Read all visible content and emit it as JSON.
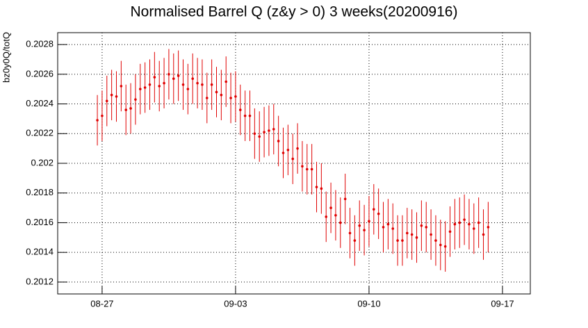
{
  "chart_data": {
    "type": "errorbar",
    "title": "Normalised Barrel Q (z&y > 0) 3 weeks(20200916)",
    "y_label": "bz0y0Q/totQ",
    "color": "#e00000",
    "grid": true,
    "xlim": [
      -2.33,
      22.46
    ],
    "ylim": [
      0.20112,
      0.20288
    ],
    "xticks": [
      {
        "value": 0,
        "label": "08-27"
      },
      {
        "value": 7,
        "label": "09-03"
      },
      {
        "value": 14,
        "label": "09-10"
      },
      {
        "value": 21,
        "label": "09-17"
      }
    ],
    "yticks": [
      0.2012,
      0.2014,
      0.2016,
      0.2018,
      0.202,
      0.2022,
      0.2024,
      0.2026,
      0.2028
    ],
    "x": [
      -0.25,
      0,
      0.25,
      0.5,
      0.75,
      1,
      1.25,
      1.5,
      1.75,
      2,
      2.25,
      2.5,
      2.75,
      3,
      3.25,
      3.5,
      3.75,
      4,
      4.25,
      4.5,
      4.75,
      5,
      5.25,
      5.5,
      5.75,
      6,
      6.25,
      6.5,
      6.75,
      7,
      7.25,
      7.5,
      7.75,
      8,
      8.25,
      8.5,
      8.75,
      9,
      9.25,
      9.5,
      9.75,
      10,
      10.25,
      10.5,
      10.75,
      11,
      11.25,
      11.5,
      11.75,
      12,
      12.25,
      12.5,
      12.75,
      13,
      13.25,
      13.5,
      13.75,
      14,
      14.25,
      14.5,
      14.75,
      15,
      15.25,
      15.5,
      15.75,
      16,
      16.25,
      16.5,
      16.75,
      17,
      17.25,
      17.5,
      17.75,
      18,
      18.25,
      18.5,
      18.75,
      19,
      19.25,
      19.5,
      19.75,
      20,
      20.25
    ],
    "values": [
      0.20229,
      0.20232,
      0.20242,
      0.20246,
      0.20245,
      0.20252,
      0.20236,
      0.20237,
      0.20243,
      0.2025,
      0.20251,
      0.20253,
      0.20258,
      0.20252,
      0.20254,
      0.2026,
      0.20257,
      0.20259,
      0.20253,
      0.2025,
      0.20257,
      0.20254,
      0.20253,
      0.20244,
      0.20253,
      0.20248,
      0.20246,
      0.20255,
      0.20244,
      0.20245,
      0.20236,
      0.20232,
      0.20232,
      0.2022,
      0.20218,
      0.20221,
      0.20222,
      0.20223,
      0.20215,
      0.20207,
      0.20209,
      0.20203,
      0.2021,
      0.20198,
      0.20196,
      0.20196,
      0.20184,
      0.20183,
      0.20164,
      0.2017,
      0.20165,
      0.2016,
      0.20176,
      0.20153,
      0.20148,
      0.20158,
      0.20155,
      0.20161,
      0.20169,
      0.20166,
      0.20157,
      0.20159,
      0.20156,
      0.20148,
      0.20148,
      0.20153,
      0.20152,
      0.2015,
      0.20158,
      0.20157,
      0.20152,
      0.20148,
      0.20145,
      0.20144,
      0.20154,
      0.20159,
      0.2016,
      0.20162,
      0.20159,
      0.20156,
      0.2016,
      0.20152,
      0.20157
    ],
    "errors": [
      0.00017,
      0.00017,
      0.00017,
      0.00017,
      0.00017,
      0.00017,
      0.00017,
      0.00017,
      0.00017,
      0.00017,
      0.00017,
      0.00017,
      0.00017,
      0.00017,
      0.00017,
      0.00017,
      0.00017,
      0.00017,
      0.00017,
      0.00017,
      0.00017,
      0.00017,
      0.00017,
      0.00017,
      0.00017,
      0.00017,
      0.00017,
      0.00017,
      0.00017,
      0.00017,
      0.00017,
      0.00017,
      0.00017,
      0.00017,
      0.00017,
      0.00017,
      0.00017,
      0.00017,
      0.00017,
      0.00017,
      0.00017,
      0.00017,
      0.00017,
      0.00017,
      0.00017,
      0.00017,
      0.00017,
      0.00017,
      0.00017,
      0.00017,
      0.00017,
      0.00017,
      0.00017,
      0.00017,
      0.00017,
      0.00017,
      0.00017,
      0.00017,
      0.00017,
      0.00017,
      0.00017,
      0.00017,
      0.00017,
      0.00017,
      0.00017,
      0.00017,
      0.00017,
      0.00017,
      0.00017,
      0.00017,
      0.00017,
      0.00017,
      0.00017,
      0.00017,
      0.00017,
      0.00017,
      0.00017,
      0.00017,
      0.00017,
      0.00017,
      0.00017,
      0.00017,
      0.00017
    ]
  }
}
